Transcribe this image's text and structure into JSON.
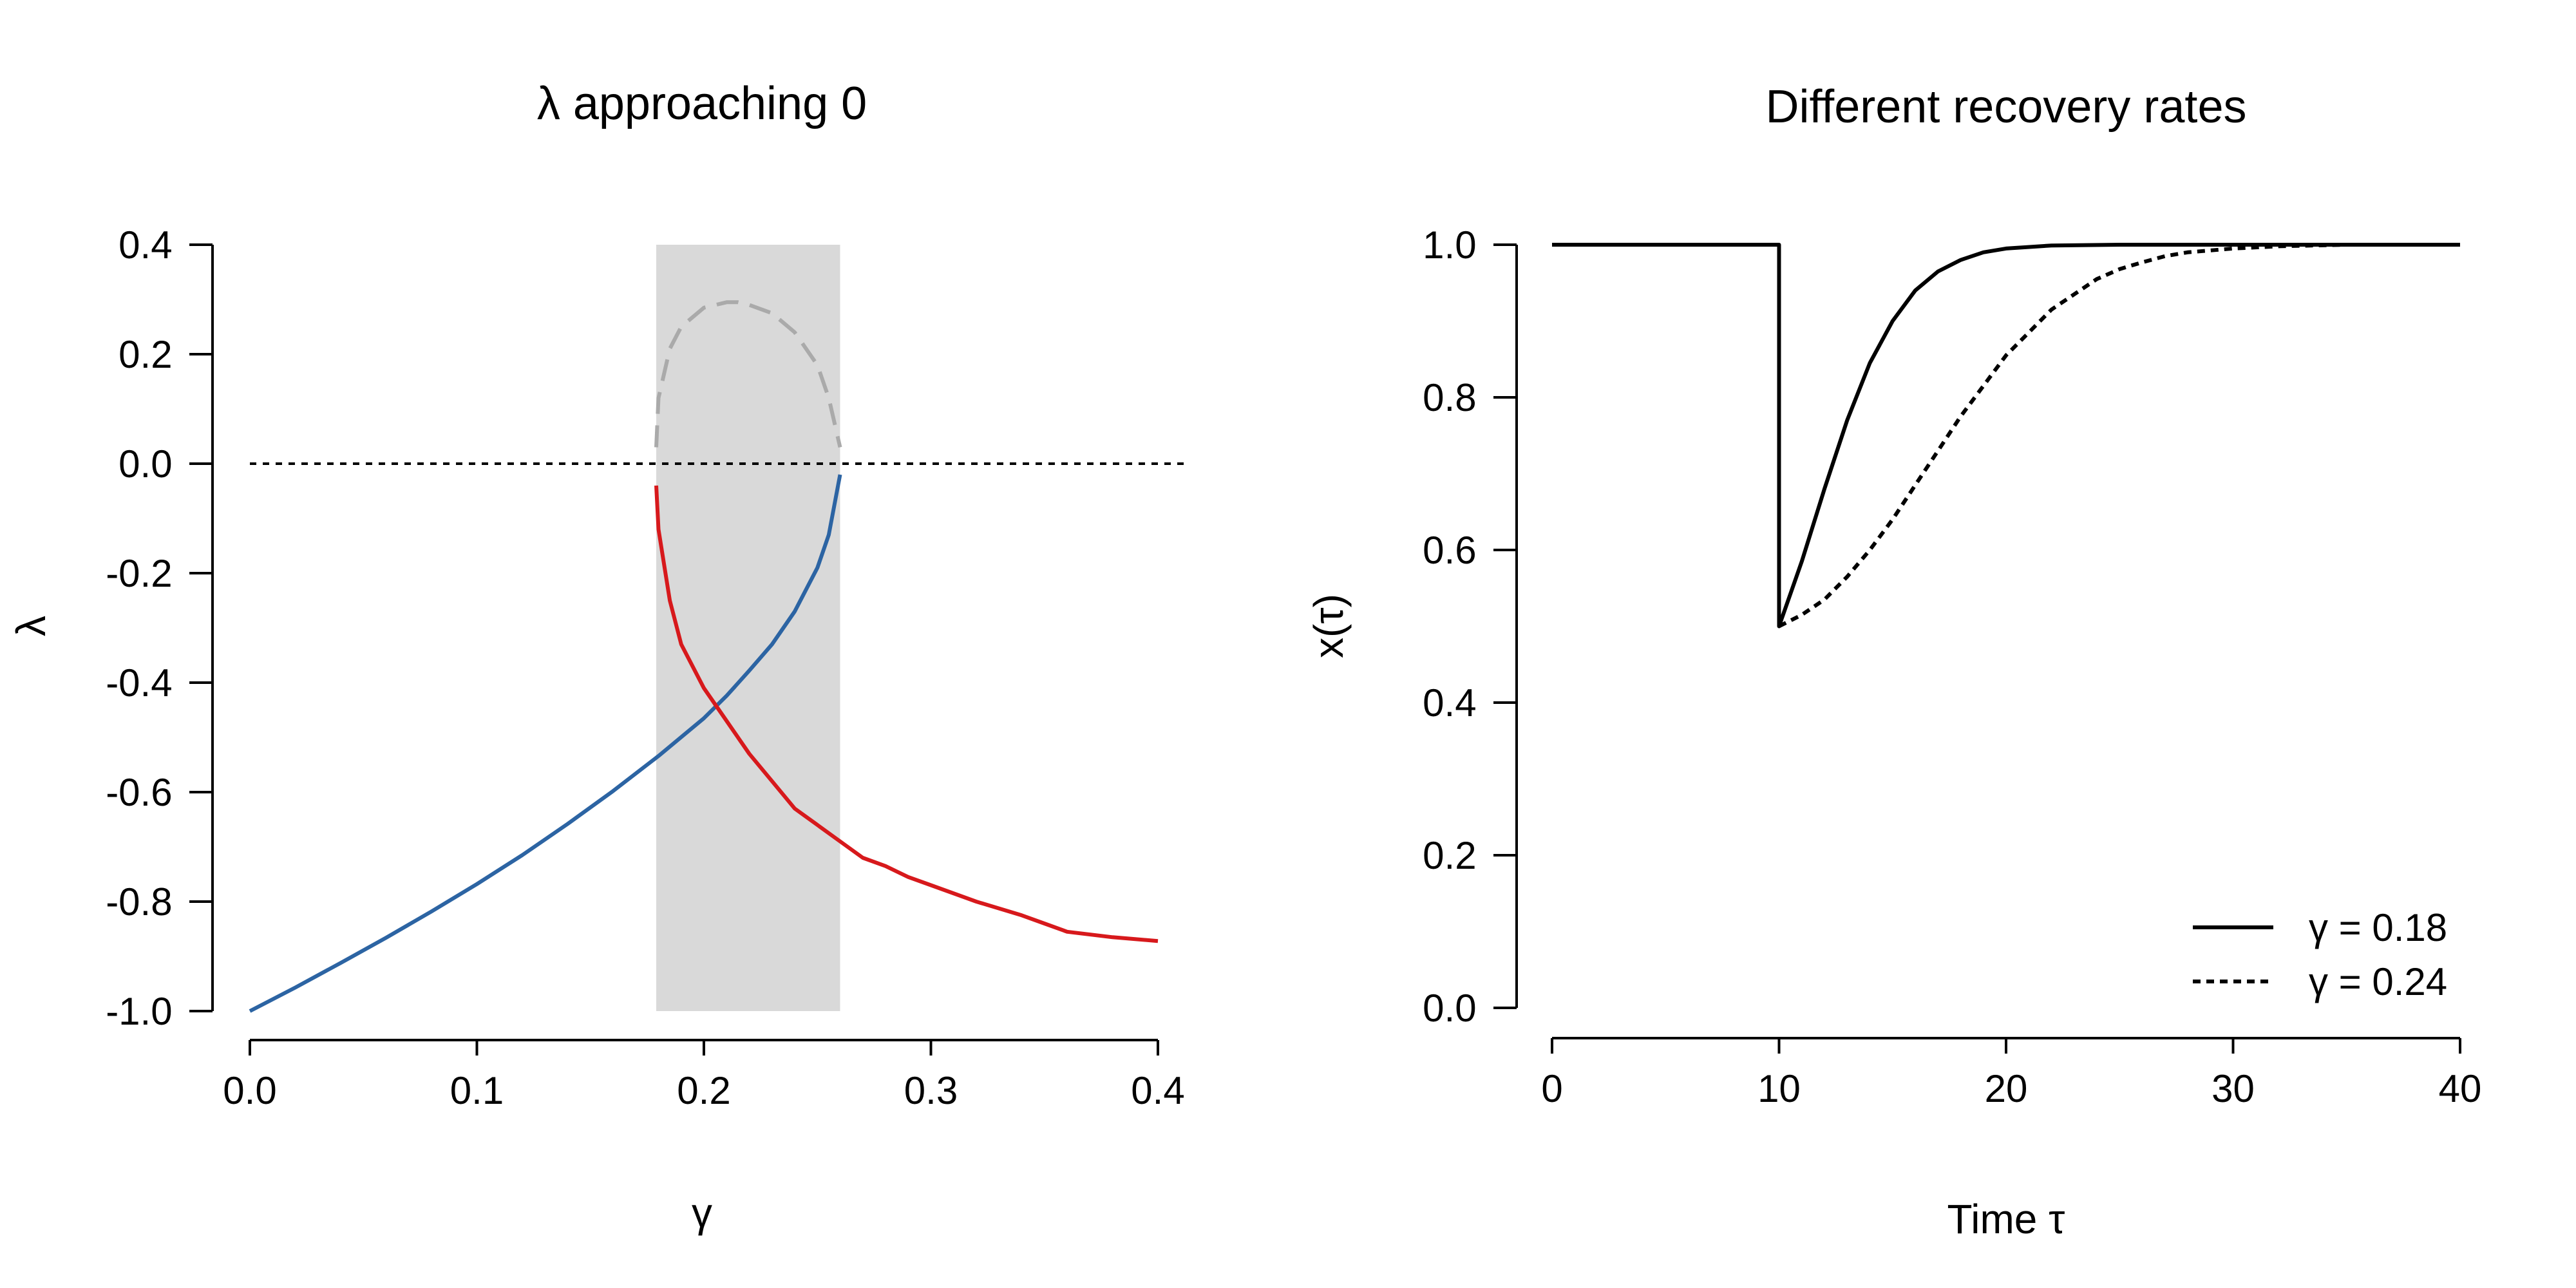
{
  "chart_data": [
    {
      "type": "line",
      "title": "λ  approaching 0",
      "xlabel": "γ",
      "ylabel": "λ",
      "xlim": [
        0,
        0.4
      ],
      "ylim": [
        -1.0,
        0.4
      ],
      "x_ticks": [
        "0.0",
        "0.1",
        "0.2",
        "0.3",
        "0.4"
      ],
      "y_ticks": [
        "-1.0",
        "-0.8",
        "-0.6",
        "-0.4",
        "-0.2",
        "0.0",
        "0.2",
        "0.4"
      ],
      "grid": false,
      "shaded_region": {
        "x_start": 0.179,
        "x_end": 0.26,
        "color": "#d9d9d9"
      },
      "reference_line": {
        "y": 0.0,
        "style": "dotted",
        "color": "#000000"
      },
      "series": [
        {
          "color": "#2c64a3",
          "style": "solid",
          "x": [
            0.0,
            0.02,
            0.04,
            0.06,
            0.08,
            0.1,
            0.12,
            0.14,
            0.16,
            0.18,
            0.2,
            0.21,
            0.22,
            0.23,
            0.24,
            0.25,
            0.255,
            0.26
          ],
          "y": [
            -1.0,
            -0.957,
            -0.912,
            -0.866,
            -0.818,
            -0.768,
            -0.715,
            -0.658,
            -0.598,
            -0.534,
            -0.465,
            -0.424,
            -0.378,
            -0.33,
            -0.27,
            -0.19,
            -0.13,
            -0.02
          ]
        },
        {
          "color": "#d7191c",
          "style": "solid",
          "x": [
            0.179,
            0.18,
            0.185,
            0.19,
            0.2,
            0.21,
            0.22,
            0.23,
            0.24,
            0.25,
            0.26,
            0.27,
            0.28,
            0.29,
            0.3,
            0.32,
            0.34,
            0.35,
            0.36,
            0.38,
            0.4
          ],
          "y": [
            -0.04,
            -0.12,
            -0.25,
            -0.33,
            -0.41,
            -0.47,
            -0.53,
            -0.58,
            -0.63,
            -0.66,
            -0.69,
            -0.72,
            -0.735,
            -0.755,
            -0.77,
            -0.8,
            -0.825,
            -0.84,
            -0.855,
            -0.865,
            -0.872
          ]
        },
        {
          "color": "#aaaaaa",
          "style": "dashed",
          "x": [
            0.179,
            0.18,
            0.185,
            0.19,
            0.2,
            0.21,
            0.215,
            0.22,
            0.23,
            0.24,
            0.25,
            0.255,
            0.26
          ],
          "y": [
            0.03,
            0.12,
            0.21,
            0.25,
            0.285,
            0.295,
            0.295,
            0.29,
            0.275,
            0.24,
            0.18,
            0.12,
            0.03
          ]
        }
      ]
    },
    {
      "type": "line",
      "title": "Different recovery rates",
      "xlabel": "Time  τ",
      "ylabel": "x(τ)",
      "xlim": [
        0,
        40
      ],
      "ylim": [
        0.0,
        1.0
      ],
      "x_ticks": [
        "0",
        "10",
        "20",
        "30",
        "40"
      ],
      "y_ticks": [
        "0.0",
        "0.2",
        "0.4",
        "0.6",
        "0.8",
        "1.0"
      ],
      "grid": false,
      "legend": {
        "position": "bottom-right",
        "entries": [
          {
            "label": "γ  = 0.18",
            "style": "solid"
          },
          {
            "label": "γ  = 0.24",
            "style": "dotted"
          }
        ]
      },
      "series": [
        {
          "color": "#000000",
          "style": "solid",
          "x": [
            0,
            10,
            10,
            11,
            12,
            13,
            14,
            15,
            16,
            17,
            18,
            19,
            20,
            22,
            25,
            30,
            40
          ],
          "y": [
            1.0,
            1.0,
            0.5,
            0.585,
            0.68,
            0.77,
            0.845,
            0.9,
            0.94,
            0.965,
            0.98,
            0.99,
            0.995,
            0.999,
            1.0,
            1.0,
            1.0
          ]
        },
        {
          "color": "#000000",
          "style": "dotted",
          "x": [
            0,
            10,
            10,
            11,
            12,
            13,
            14,
            15,
            16,
            17,
            18,
            19,
            20,
            21,
            22,
            23,
            24,
            25,
            26,
            27,
            28,
            30,
            32,
            35,
            40
          ],
          "y": [
            1.0,
            1.0,
            0.5,
            0.515,
            0.535,
            0.565,
            0.6,
            0.64,
            0.685,
            0.73,
            0.775,
            0.815,
            0.855,
            0.885,
            0.915,
            0.935,
            0.955,
            0.968,
            0.977,
            0.985,
            0.99,
            0.995,
            0.998,
            1.0,
            1.0
          ]
        }
      ]
    }
  ]
}
